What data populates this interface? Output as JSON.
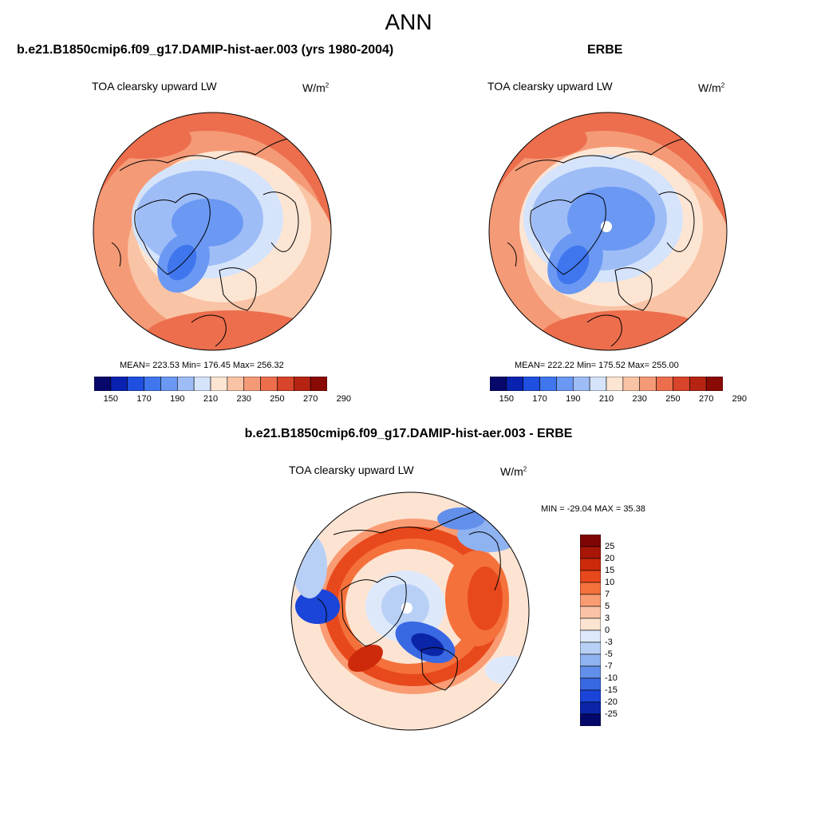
{
  "season": "ANN",
  "panels": [
    {
      "title": "b.e21.B1850cmip6.f09_g17.DAMIP-hist-aer.003 (yrs 1980-2004)",
      "var_label": "TOA clearsky upward LW",
      "units": "W/m",
      "units_exp": "2",
      "stats": "MEAN= 223.53  Min= 176.45  Max= 256.32",
      "colorbar_ticks": [
        "150",
        "170",
        "190",
        "210",
        "230",
        "250",
        "270",
        "290"
      ]
    },
    {
      "title": "ERBE",
      "var_label": "TOA clearsky upward LW",
      "units": "W/m",
      "units_exp": "2",
      "stats": "MEAN= 222.22  Min= 175.52  Max= 255.00",
      "colorbar_ticks": [
        "150",
        "170",
        "190",
        "210",
        "230",
        "250",
        "270",
        "290"
      ]
    }
  ],
  "diff": {
    "title": "b.e21.B1850cmip6.f09_g17.DAMIP-hist-aer.003 - ERBE",
    "var_label": "TOA clearsky upward LW",
    "units": "W/m",
    "units_exp": "2",
    "minmax": "MIN = -29.04 MAX =  35.38",
    "colorbar_ticks": [
      "25",
      "20",
      "15",
      "10",
      "7",
      "5",
      "3",
      "0",
      "-3",
      "-5",
      "-7",
      "-10",
      "-15",
      "-20",
      "-25"
    ]
  },
  "colors": {
    "abs_scale": [
      "#08086b",
      "#0a22b0",
      "#1f4fe0",
      "#3f76ee",
      "#6a98f3",
      "#9ebdf7",
      "#d5e4fb",
      "#fde5d3",
      "#f9c3a5",
      "#f59a77",
      "#ec6e4d",
      "#d8452a",
      "#b52413",
      "#8a0a05"
    ],
    "diff_scale": [
      "#7e0505",
      "#a81608",
      "#cc2a0a",
      "#e8491c",
      "#f4713c",
      "#f99c74",
      "#fbc3a6",
      "#fde4d2",
      "#dde9fa",
      "#b9d0f6",
      "#8fb2f1",
      "#628fea",
      "#3968e3",
      "#1a45d8",
      "#0b25a8",
      "#05086b"
    ]
  }
}
